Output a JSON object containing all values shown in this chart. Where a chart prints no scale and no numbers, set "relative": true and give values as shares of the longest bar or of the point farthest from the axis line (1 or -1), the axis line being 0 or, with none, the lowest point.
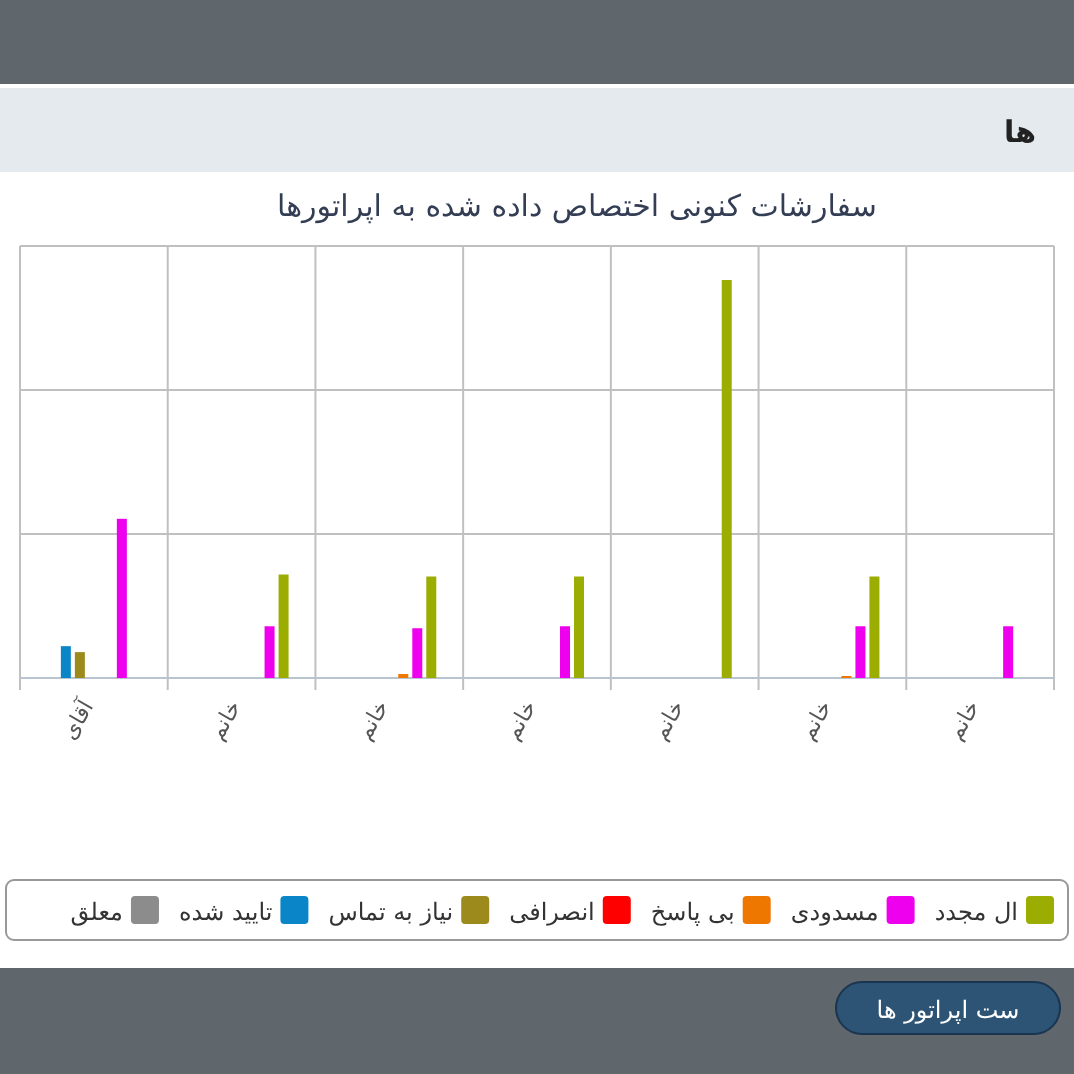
{
  "chart_data": {
    "type": "bar",
    "title": "سفارشات کنونی اختصاص داده شده به اپراتورها",
    "categories": [
      "آقای",
      "خانم",
      "خانم",
      "خانم",
      "خانم",
      "خانم",
      "خانم"
    ],
    "relative": true,
    "grid": true,
    "legend": "bottom",
    "series": [
      {
        "name": "معلق",
        "color": "#8c8c8c",
        "values": [
          0,
          0,
          0,
          0,
          0,
          0,
          0
        ]
      },
      {
        "name": "تایید شده",
        "color": "#0a86c8",
        "values": [
          0.08,
          0,
          0,
          0,
          0,
          0,
          0
        ]
      },
      {
        "name": "نیاز به تماس",
        "color": "#9c8a1c",
        "values": [
          0.065,
          0,
          0,
          0,
          0,
          0,
          0
        ]
      },
      {
        "name": "انصرافی",
        "color": "#ff0000",
        "values": [
          0,
          0,
          0,
          0,
          0,
          0,
          0
        ]
      },
      {
        "name": "بی پاسخ",
        "color": "#ee7700",
        "values": [
          0,
          0,
          0.01,
          0,
          0,
          0.005,
          0
        ]
      },
      {
        "name": "مسدودی",
        "color": "#ee00ee",
        "values": [
          0.4,
          0.13,
          0.125,
          0.13,
          0,
          0.13,
          0.13
        ]
      },
      {
        "name": "ال مجدد",
        "color": "#9aad00",
        "values": [
          0,
          0.26,
          0.255,
          0.255,
          1,
          0.255,
          null
        ]
      }
    ],
    "annotations": [
      "ها",
      "ست اپراتور ها"
    ]
  }
}
